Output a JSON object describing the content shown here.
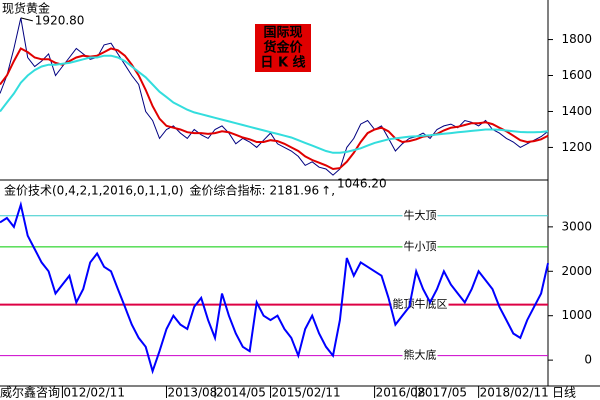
{
  "chart_data": [
    {
      "type": "line",
      "label": "现货黄金",
      "title_lines": [
        "国际现",
        "货金价",
        "日 K 线"
      ],
      "ylim": [
        1030,
        2020
      ],
      "yticks": [
        1200,
        1400,
        1600,
        1800
      ],
      "xlim": [
        0,
        79
      ],
      "high": {
        "index": 3,
        "value": 1920.8,
        "label": "1920.80"
      },
      "low": {
        "index": 48,
        "value": 1046.2,
        "label": "1046.20"
      },
      "series": [
        {
          "color": "#000080",
          "values": [
            1500,
            1600,
            1750,
            1920,
            1700,
            1650,
            1680,
            1720,
            1600,
            1650,
            1700,
            1750,
            1720,
            1690,
            1700,
            1770,
            1780,
            1720,
            1660,
            1600,
            1550,
            1400,
            1350,
            1250,
            1300,
            1320,
            1280,
            1250,
            1300,
            1270,
            1250,
            1300,
            1320,
            1280,
            1220,
            1250,
            1230,
            1200,
            1240,
            1280,
            1220,
            1200,
            1180,
            1150,
            1100,
            1120,
            1090,
            1080,
            1046,
            1080,
            1200,
            1250,
            1330,
            1350,
            1300,
            1320,
            1250,
            1180,
            1220,
            1250,
            1260,
            1280,
            1250,
            1300,
            1320,
            1330,
            1310,
            1350,
            1340,
            1320,
            1350,
            1300,
            1280,
            1250,
            1230,
            1200,
            1220,
            1240,
            1260,
            1290
          ]
        },
        {
          "color": "#e00000",
          "values": [
            1550,
            1600,
            1680,
            1750,
            1730,
            1700,
            1690,
            1690,
            1670,
            1660,
            1680,
            1700,
            1710,
            1705,
            1710,
            1730,
            1750,
            1740,
            1710,
            1660,
            1600,
            1520,
            1430,
            1360,
            1320,
            1310,
            1300,
            1285,
            1280,
            1280,
            1275,
            1280,
            1290,
            1285,
            1270,
            1255,
            1245,
            1230,
            1230,
            1240,
            1235,
            1220,
            1200,
            1180,
            1150,
            1130,
            1115,
            1100,
            1080,
            1085,
            1120,
            1170,
            1230,
            1280,
            1300,
            1310,
            1290,
            1250,
            1230,
            1235,
            1245,
            1260,
            1265,
            1275,
            1295,
            1310,
            1315,
            1325,
            1335,
            1335,
            1340,
            1330,
            1310,
            1290,
            1265,
            1240,
            1230,
            1235,
            1245,
            1265
          ]
        },
        {
          "color": "#33dddd",
          "values": [
            1400,
            1450,
            1500,
            1560,
            1600,
            1630,
            1650,
            1660,
            1660,
            1665,
            1670,
            1680,
            1690,
            1700,
            1700,
            1710,
            1710,
            1700,
            1680,
            1650,
            1620,
            1590,
            1550,
            1510,
            1480,
            1450,
            1430,
            1410,
            1395,
            1385,
            1375,
            1365,
            1355,
            1345,
            1335,
            1325,
            1315,
            1305,
            1295,
            1285,
            1275,
            1265,
            1255,
            1240,
            1225,
            1210,
            1195,
            1180,
            1170,
            1170,
            1175,
            1185,
            1195,
            1210,
            1225,
            1235,
            1245,
            1250,
            1255,
            1260,
            1262,
            1265,
            1268,
            1272,
            1276,
            1280,
            1284,
            1288,
            1292,
            1296,
            1300,
            1300,
            1298,
            1294,
            1290,
            1286,
            1284,
            1284,
            1286,
            1290
          ]
        }
      ]
    },
    {
      "type": "line",
      "header": "金价技术(0,4,2,1,2016,0,1,1,0)",
      "indicator_label": "金价综合指标:",
      "last_value": 2181.96,
      "suffix": "↑,",
      "ylim": [
        -560,
        4010
      ],
      "yticks": [
        0,
        1000,
        2000,
        3000
      ],
      "xlim": [
        0,
        79
      ],
      "xticks": [
        {
          "value": 9,
          "label": "012/02/11"
        },
        {
          "value": 24,
          "label": "2013/08"
        },
        {
          "value": 31,
          "label": "2014/05"
        },
        {
          "value": 39,
          "label": "2015/02/11"
        },
        {
          "value": 54,
          "label": "2016/08"
        },
        {
          "value": 60,
          "label": "2017/05"
        },
        {
          "value": 69,
          "label": "2018/02/11"
        }
      ],
      "x_left_label": "威尔鑫咨询",
      "x_right_label": "日线",
      "reference_lines": [
        {
          "label": "牛大顶",
          "value": 3250,
          "color": "#33cccc"
        },
        {
          "label": "牛小顶",
          "value": 2550,
          "color": "#00cc00"
        },
        {
          "label": "能顶牛底区",
          "value": 1250,
          "color": "#dd0044"
        },
        {
          "label": "熊大底",
          "value": 100,
          "color": "#cc00cc"
        }
      ],
      "series": [
        {
          "color": "#0000ff",
          "values": [
            3100,
            3200,
            3000,
            3500,
            2800,
            2500,
            2200,
            2000,
            1500,
            1700,
            1900,
            1300,
            1600,
            2200,
            2400,
            2100,
            2000,
            1600,
            1200,
            800,
            500,
            300,
            -250,
            200,
            700,
            1000,
            800,
            700,
            1200,
            1400,
            900,
            500,
            1500,
            1000,
            600,
            300,
            200,
            1300,
            1000,
            900,
            1000,
            700,
            500,
            100,
            700,
            1000,
            600,
            300,
            100,
            900,
            2300,
            1900,
            2200,
            2100,
            2000,
            1900,
            1400,
            800,
            1000,
            1200,
            2000,
            1600,
            1300,
            1600,
            2000,
            1700,
            1500,
            1300,
            1600,
            2000,
            1800,
            1600,
            1200,
            900,
            600,
            500,
            900,
            1200,
            1500,
            2181.96
          ]
        }
      ]
    }
  ]
}
